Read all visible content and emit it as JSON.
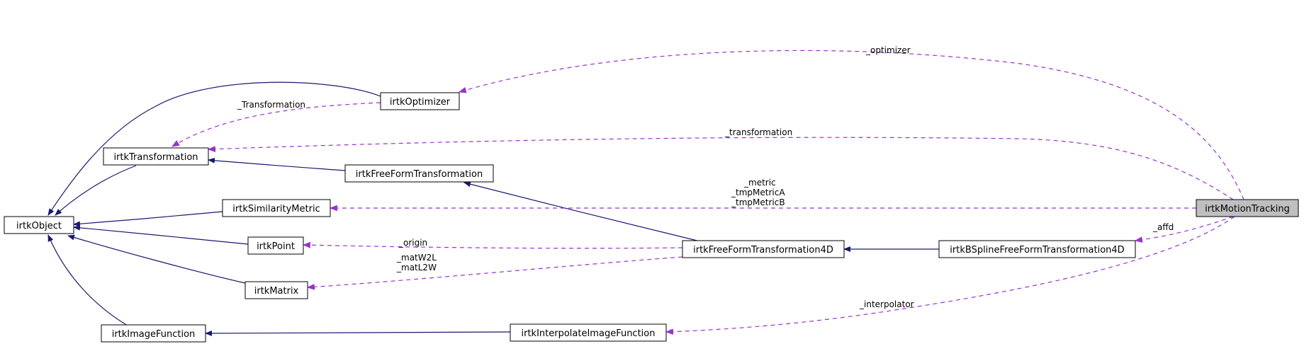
{
  "colors": {
    "inheritance": "#191970",
    "usage": "#9a32cd",
    "highlight_fill": "#bfbfbf"
  },
  "nodes": {
    "irkMotionTracking": "irtkMotionTracking",
    "irkOptimizer": "irtkOptimizer",
    "irkTransformation": "irtkTransformation",
    "irkObject": "irtkObject",
    "irkSimilarityMetric": "irtkSimilarityMetric",
    "irkFreeFormTransformation": "irtkFreeFormTransformation",
    "irkFreeFormTransformation4D": "irtkFreeFormTransformation4D",
    "irkBSplineFreeFormTransformation4D": "irtkBSplineFreeFormTransformation4D",
    "irkPoint": "irtkPoint",
    "irkMatrix": "irtkMatrix",
    "irkImageFunction": "irtkImageFunction",
    "irkInterpolateImageFunction": "irtkInterpolateImageFunction"
  },
  "edge_labels": {
    "optimizer": "_optimizer",
    "transformation_opt": "_Transformation",
    "transformation": "_transformation",
    "metric": [
      "_metric",
      "_tmpMetricA",
      "_tmpMetricB"
    ],
    "affd": "_affd",
    "origin": "_origin",
    "mat": [
      "_matW2L",
      "_matL2W"
    ],
    "interpolator": "_interpolator"
  }
}
